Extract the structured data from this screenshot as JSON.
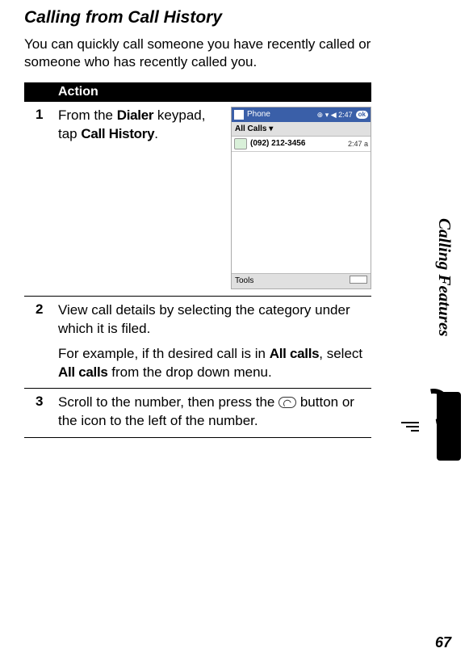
{
  "heading": "Calling from Call History",
  "intro": "You can quickly call someone you have recently called or someone who has recently called you.",
  "action_label": "Action",
  "steps": {
    "s1": {
      "num": "1",
      "pre": "From the ",
      "kw1": "Dialer",
      "mid": " keypad, tap ",
      "kw2": "Call History",
      "post": "."
    },
    "s2": {
      "num": "2",
      "p1": "View call details by selecting the category under which it is filed.",
      "p2_pre": "For example, if th desired call is in ",
      "p2_kw1": "All calls",
      "p2_mid": ", select ",
      "p2_kw2": "All calls",
      "p2_post": " from the drop down menu."
    },
    "s3": {
      "num": "3",
      "pre": "Scroll to the number, then press the ",
      "post": " button or the icon to the left of the number."
    }
  },
  "screenshot": {
    "title": "Phone",
    "sys": "⊕ ▾ ◀ 2:47",
    "ok": "ok",
    "sub": "All Calls ▾",
    "number": "(092) 212-3456",
    "time": "2:47 a",
    "footer_left": "Tools"
  },
  "side_label": "Calling Features",
  "page_number": "67"
}
